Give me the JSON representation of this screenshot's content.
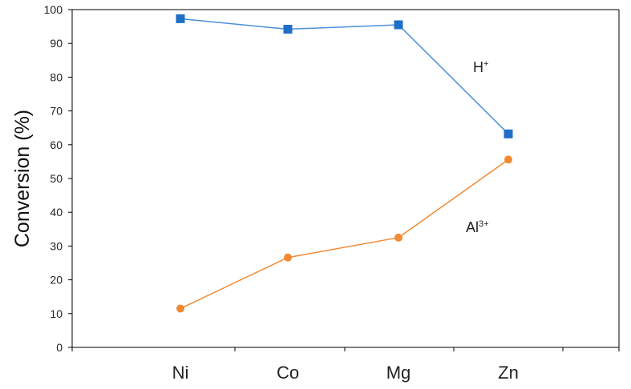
{
  "chart_data": {
    "type": "line",
    "title": "",
    "xlabel": "",
    "ylabel": "Conversion (%)",
    "categories": [
      "Ni",
      "Co",
      "Mg",
      "Zn"
    ],
    "ylim": [
      0,
      100
    ],
    "yticks": [
      0,
      10,
      20,
      30,
      40,
      50,
      60,
      70,
      80,
      90,
      100
    ],
    "grid": false,
    "series": [
      {
        "label_base": "H",
        "label_sup": "+",
        "marker": "square",
        "color": "#1F6FC6",
        "line_color": "#4A8FD9",
        "values": [
          97.3,
          94.2,
          95.5,
          63.2
        ]
      },
      {
        "label_base": "Al",
        "label_sup": "3+",
        "marker": "circle",
        "color": "#F28A33",
        "line_color": "#F28A33",
        "values": [
          11.5,
          26.6,
          32.5,
          55.6
        ]
      }
    ]
  }
}
